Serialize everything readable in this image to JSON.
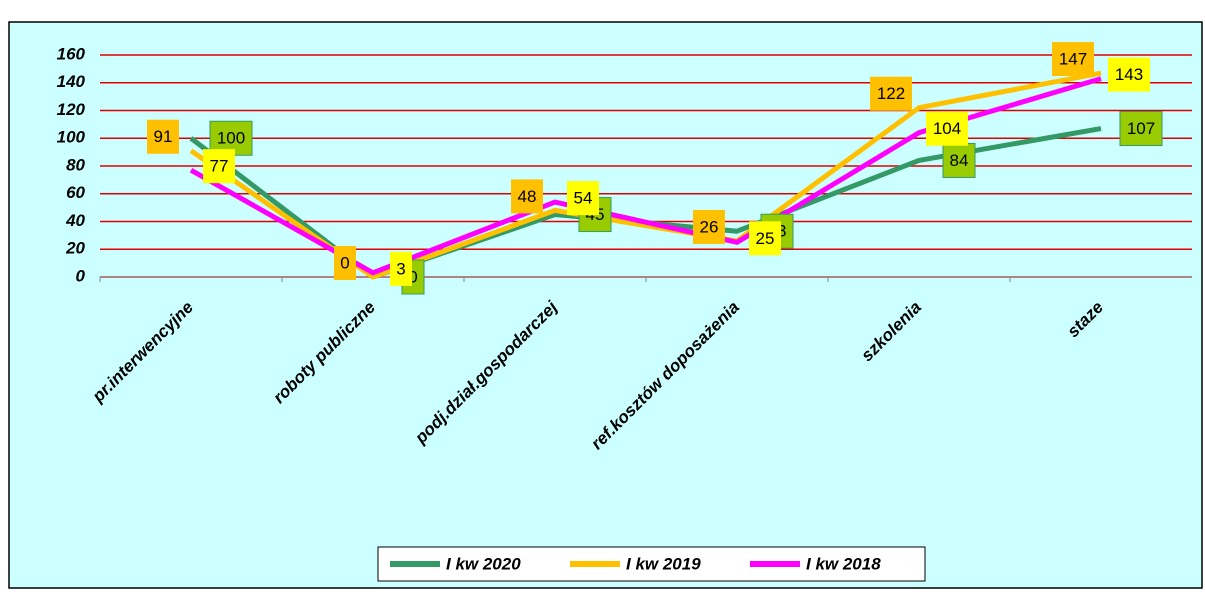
{
  "chart_data": {
    "type": "line",
    "categories": [
      "pr.interwencyjne",
      "roboty publiczne",
      "podj.dział.gospodarczej",
      "ref.kosztów doposażenia",
      "szkolenia",
      "staze"
    ],
    "series": [
      {
        "name": "I kw 2020",
        "color": "#339966",
        "label_color": "#99cc00",
        "values": [
          100,
          0,
          45,
          33,
          84,
          107
        ]
      },
      {
        "name": "I kw 2019",
        "color": "#ffc000",
        "label_color": "#ffc000",
        "values": [
          91,
          0,
          48,
          26,
          122,
          147
        ]
      },
      {
        "name": "I kw 2018",
        "color": "#ff00ff",
        "label_color": "#ffff00",
        "values": [
          77,
          3,
          54,
          25,
          104,
          143
        ]
      }
    ],
    "ylim": [
      0,
      160
    ],
    "yticks": [
      0,
      20,
      40,
      60,
      80,
      100,
      120,
      140,
      160
    ],
    "grid": true,
    "grid_color": "#e00000",
    "legend": "bottom"
  }
}
